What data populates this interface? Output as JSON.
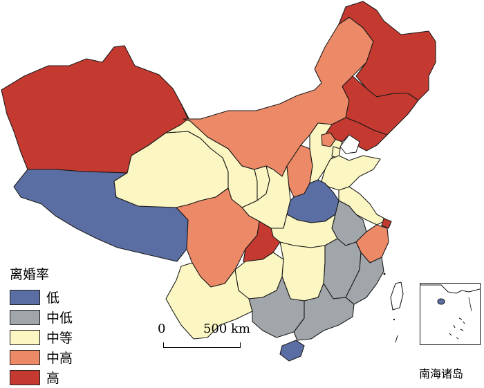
{
  "legend": {
    "title": "离婚率",
    "items": [
      {
        "key": "low",
        "label": "低",
        "color": "#5a6ea3"
      },
      {
        "key": "midlow",
        "label": "中低",
        "color": "#a0a6aa"
      },
      {
        "key": "mid",
        "label": "中等",
        "color": "#fbf6c2"
      },
      {
        "key": "midhigh",
        "label": "中高",
        "color": "#ec8a67"
      },
      {
        "key": "high",
        "label": "高",
        "color": "#c53a30"
      }
    ]
  },
  "scale": {
    "start": "0",
    "end": "500 km"
  },
  "inset": {
    "label": "南海诸岛"
  },
  "regions": [
    {
      "id": "xinjiang",
      "class": "high"
    },
    {
      "id": "xizang",
      "class": "low"
    },
    {
      "id": "qinghai",
      "class": "mid"
    },
    {
      "id": "gansu",
      "class": "mid"
    },
    {
      "id": "neimenggu",
      "class": "midhigh"
    },
    {
      "id": "heilongjiang",
      "class": "high"
    },
    {
      "id": "jilin",
      "class": "high"
    },
    {
      "id": "liaoning",
      "class": "high"
    },
    {
      "id": "ningxia",
      "class": "mid"
    },
    {
      "id": "shaanxi",
      "class": "mid"
    },
    {
      "id": "shanxi",
      "class": "midhigh"
    },
    {
      "id": "hebei",
      "class": "mid"
    },
    {
      "id": "beijing",
      "class": "midhigh"
    },
    {
      "id": "tianjin",
      "class": "mid"
    },
    {
      "id": "shandong",
      "class": "mid"
    },
    {
      "id": "henan",
      "class": "low"
    },
    {
      "id": "jiangsu",
      "class": "mid"
    },
    {
      "id": "shanghai",
      "class": "high"
    },
    {
      "id": "anhui",
      "class": "midlow"
    },
    {
      "id": "zhejiang",
      "class": "midhigh"
    },
    {
      "id": "hubei",
      "class": "mid"
    },
    {
      "id": "sichuan",
      "class": "midhigh"
    },
    {
      "id": "chongqing",
      "class": "high"
    },
    {
      "id": "guizhou",
      "class": "mid"
    },
    {
      "id": "hunan",
      "class": "mid"
    },
    {
      "id": "jiangxi",
      "class": "midlow"
    },
    {
      "id": "fujian",
      "class": "midlow"
    },
    {
      "id": "yunnan",
      "class": "mid"
    },
    {
      "id": "guangxi",
      "class": "midlow"
    },
    {
      "id": "guangdong",
      "class": "midlow"
    },
    {
      "id": "hainan",
      "class": "low"
    },
    {
      "id": "taiwan",
      "class": "none"
    }
  ]
}
